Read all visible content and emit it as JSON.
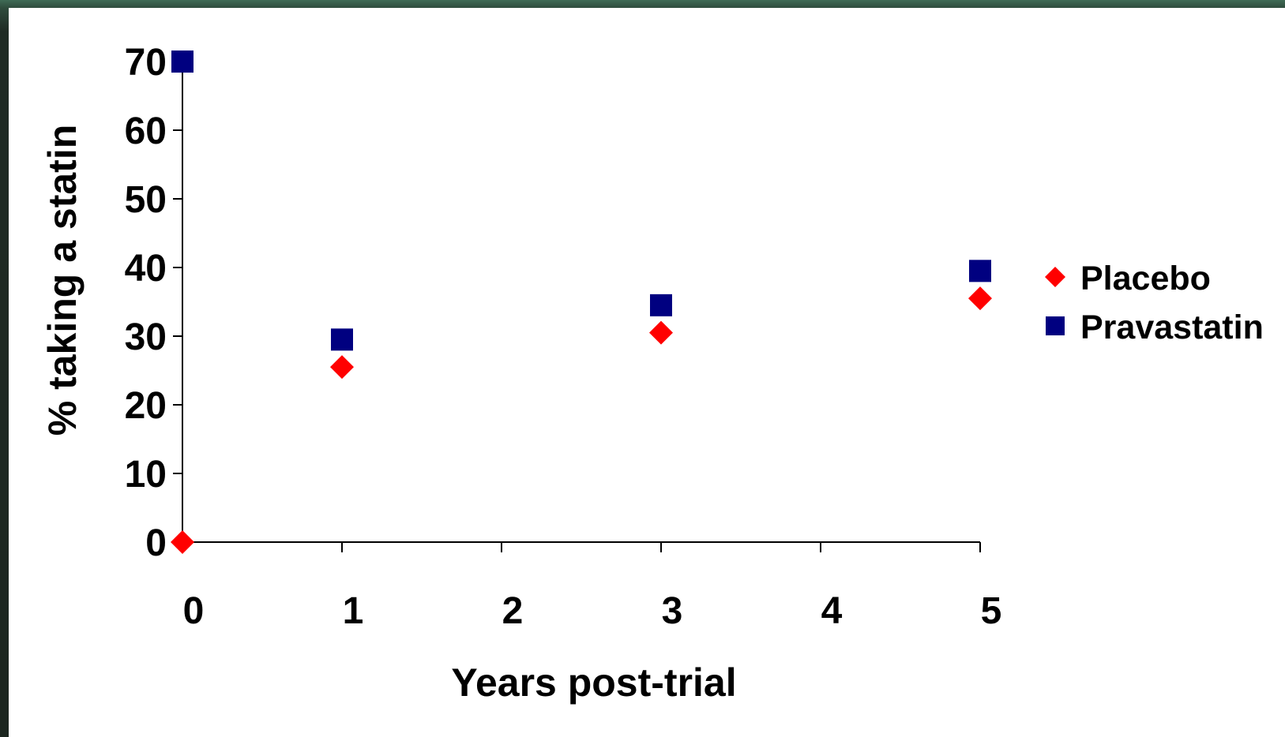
{
  "chart_data": {
    "type": "scatter",
    "xlabel": "Years post-trial",
    "ylabel": "% taking a statin",
    "xlim": [
      0,
      5
    ],
    "ylim": [
      0,
      70
    ],
    "x_ticks": [
      "0",
      "1",
      "2",
      "3",
      "4",
      "5"
    ],
    "y_ticks": [
      "0",
      "10",
      "20",
      "30",
      "40",
      "50",
      "60",
      "70"
    ],
    "grid": false,
    "legend_position": "right",
    "series": [
      {
        "name": "Placebo",
        "marker": "diamond",
        "color": "#ff0000",
        "x": [
          0,
          1,
          3,
          5
        ],
        "y": [
          0,
          25.5,
          30.5,
          35.5
        ]
      },
      {
        "name": "Pravastatin",
        "marker": "square",
        "color": "#000080",
        "x": [
          0,
          1,
          3,
          5
        ],
        "y": [
          70,
          29.5,
          34.5,
          39.5
        ]
      }
    ]
  }
}
